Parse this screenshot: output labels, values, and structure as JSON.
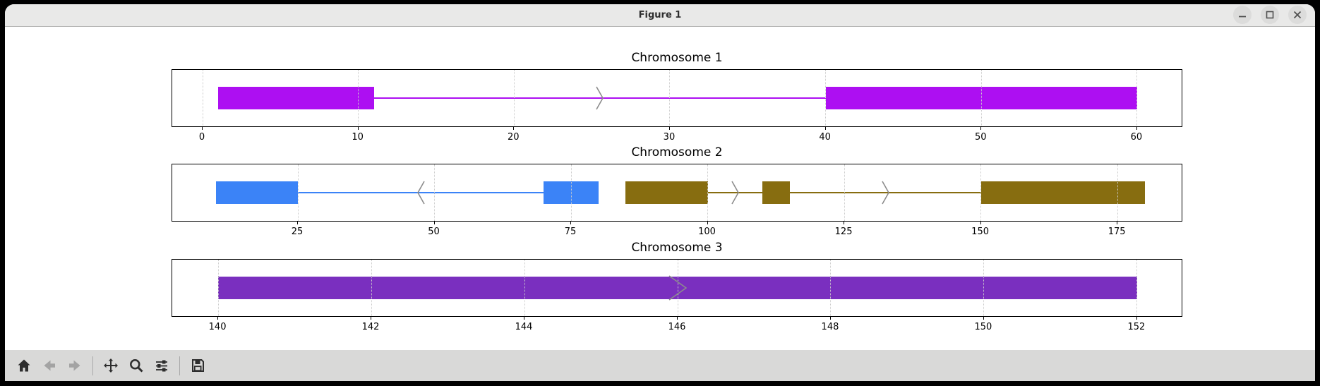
{
  "window": {
    "title": "Figure 1",
    "controls": [
      {
        "name": "minimize"
      },
      {
        "name": "maximize"
      },
      {
        "name": "close"
      }
    ]
  },
  "toolbar": {
    "icons": [
      "home-icon",
      "back-icon",
      "forward-icon",
      "pan-icon",
      "zoom-icon",
      "configure-subplots-icon",
      "save-icon"
    ],
    "disabled_icons": [
      "back-icon",
      "forward-icon"
    ]
  },
  "colors": {
    "chr1_gene": "#AD0FF2",
    "chr2_gene_minus": "#3B83F7",
    "chr2_gene_plus": "#876D10",
    "chr3_gene": "#7A2FBF",
    "chevron": "#8c8c8c",
    "gridline": "#cbcbcb",
    "titlebar_bg": "#e9e9e8",
    "toolbar_bg": "#d9d9d8"
  },
  "chart_data": [
    {
      "type": "gene-structure-diagram",
      "title": "Chromosome 1",
      "xticks": [
        0,
        10,
        20,
        30,
        40,
        50,
        60
      ],
      "xlim": [
        -1.95,
        62.95
      ],
      "grid": "dotted-vertical",
      "genes": [
        {
          "color": "#AD0FF2",
          "strand": "+",
          "exons": [
            [
              1,
              11
            ],
            [
              40,
              60
            ]
          ],
          "intron_span": [
            1,
            60
          ],
          "chevrons": [
            {
              "x": 25.5,
              "dir": "right"
            }
          ]
        }
      ]
    },
    {
      "type": "gene-structure-diagram",
      "title": "Chromosome 2",
      "xticks": [
        25,
        50,
        75,
        100,
        125,
        150,
        175
      ],
      "xlim": [
        2.0,
        187.0
      ],
      "grid": "dotted-vertical",
      "genes": [
        {
          "color": "#3B83F7",
          "strand": "-",
          "exons": [
            [
              10,
              25
            ],
            [
              70,
              80
            ]
          ],
          "intron_span": [
            10,
            80
          ],
          "chevrons": [
            {
              "x": 47.5,
              "dir": "left"
            }
          ]
        },
        {
          "color": "#876D10",
          "strand": "+",
          "exons": [
            [
              85,
              100
            ],
            [
              110,
              115
            ],
            [
              150,
              180
            ]
          ],
          "intron_span": [
            85,
            180
          ],
          "chevrons": [
            {
              "x": 105,
              "dir": "right"
            },
            {
              "x": 132.5,
              "dir": "right"
            }
          ]
        }
      ]
    },
    {
      "type": "gene-structure-diagram",
      "title": "Chromosome 3",
      "xticks": [
        140,
        142,
        144,
        146,
        148,
        150,
        152
      ],
      "xlim": [
        139.4,
        152.6
      ],
      "grid": "dotted-vertical",
      "genes": [
        {
          "color": "#7A2FBF",
          "strand": "+",
          "exons": [
            [
              140,
              152
            ]
          ],
          "intron_span": [
            140,
            152
          ],
          "chevrons": [
            {
              "x": 146,
              "dir": "right",
              "w": 26
            }
          ]
        }
      ]
    }
  ]
}
